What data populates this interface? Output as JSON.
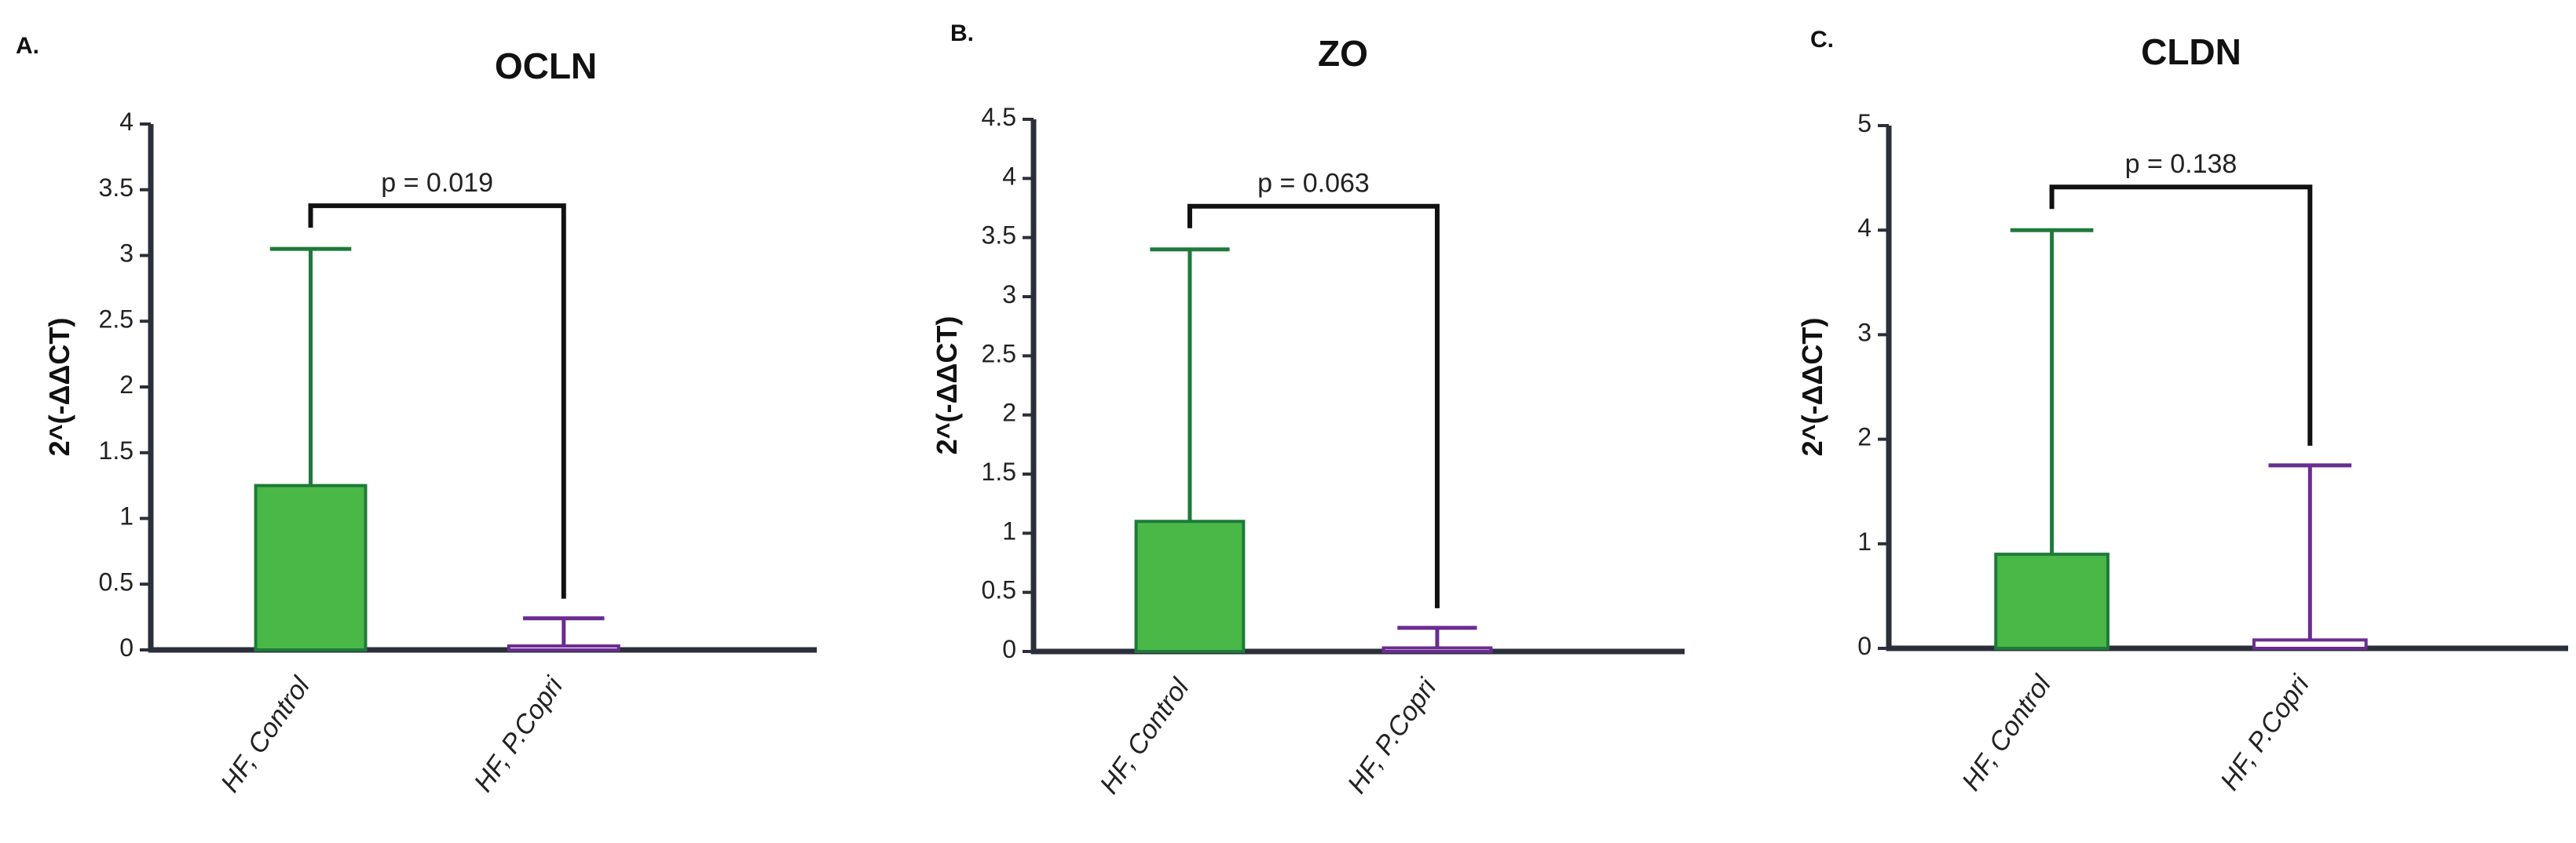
{
  "chart_data": [
    {
      "type": "bar",
      "panel": "A.",
      "title": "OCLN",
      "ylabel": "2^(-ΔΔCT)",
      "xlabel": "",
      "ylim": [
        0,
        4
      ],
      "yticks": [
        "0",
        "0.5",
        "1",
        "1.5",
        "2",
        "2.5",
        "3",
        "3.5",
        "4"
      ],
      "categories": [
        "HF, Control",
        "HF, P.Copri"
      ],
      "values": [
        1.25,
        0.03
      ],
      "error_upper": [
        3.05,
        0.24
      ],
      "bar_fill": [
        "#4ab847",
        "#ffffff"
      ],
      "bar_stroke": [
        "#1e7a3a",
        "#6a2c91"
      ],
      "significance": {
        "from": 0,
        "to": 1,
        "label": "p = 0.019"
      }
    },
    {
      "type": "bar",
      "panel": "B.",
      "title": "ZO",
      "ylabel": "2^(-ΔΔCT)",
      "xlabel": "",
      "ylim": [
        0,
        4.5
      ],
      "yticks": [
        "0",
        "0.5",
        "1",
        "1.5",
        "2",
        "2.5",
        "3",
        "3.5",
        "4",
        "4.5"
      ],
      "categories": [
        "HF, Control",
        "HF, P.Copri"
      ],
      "values": [
        1.1,
        0.03
      ],
      "error_upper": [
        3.4,
        0.2
      ],
      "bar_fill": [
        "#4ab847",
        "#ffffff"
      ],
      "bar_stroke": [
        "#1e7a3a",
        "#6a2c91"
      ],
      "significance": {
        "from": 0,
        "to": 1,
        "label": "p = 0.063"
      }
    },
    {
      "type": "bar",
      "panel": "C.",
      "title": "CLDN",
      "ylabel": "2^(-ΔΔCT)",
      "xlabel": "",
      "ylim": [
        0,
        5
      ],
      "yticks": [
        "0",
        "1",
        "2",
        "3",
        "4",
        "5"
      ],
      "categories": [
        "HF, Control",
        "HF, P.Copri"
      ],
      "values": [
        0.9,
        0.08
      ],
      "error_upper": [
        4.0,
        1.75
      ],
      "bar_fill": [
        "#4ab847",
        "#ffffff"
      ],
      "bar_stroke": [
        "#1e7a3a",
        "#6a2c91"
      ],
      "significance": {
        "from": 0,
        "to": 1,
        "label": "p = 0.138"
      }
    }
  ]
}
